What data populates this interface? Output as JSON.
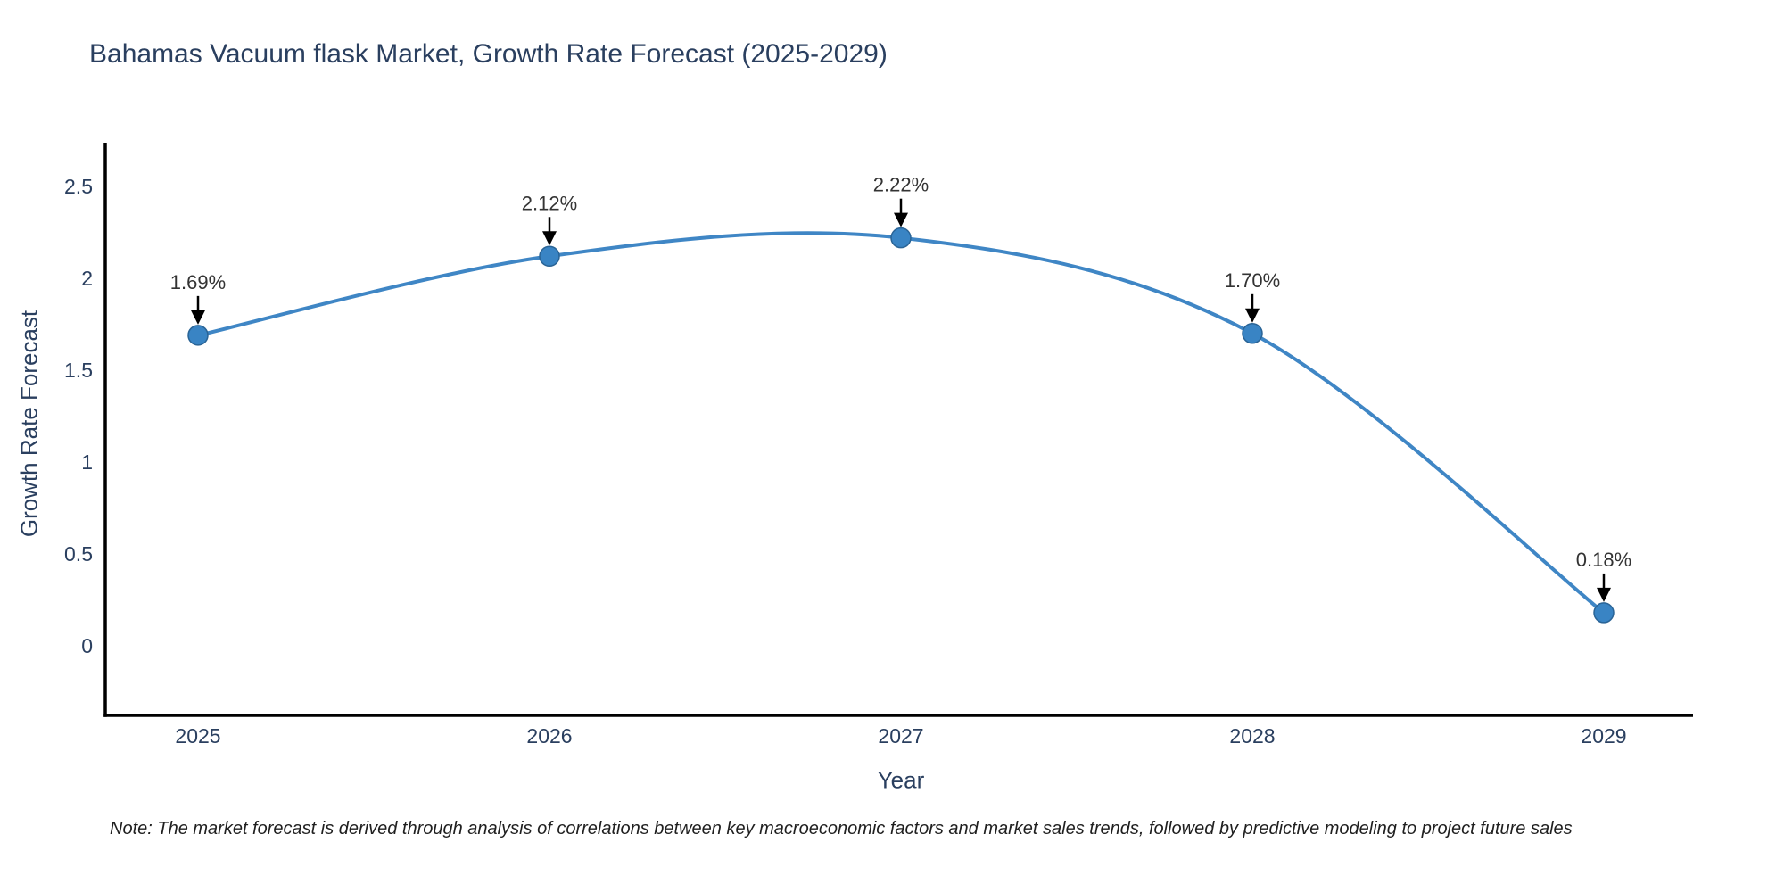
{
  "chart": {
    "title": "Bahamas Vacuum flask Market, Growth Rate Forecast (2025-2029)",
    "x_axis_title": "Year",
    "y_axis_title": "Growth Rate Forecast",
    "note": "Note: The market forecast is derived through analysis of correlations between key macroeconomic factors and market sales trends, followed by predictive modeling to project future sales",
    "colors": {
      "line": "#3f86c5",
      "marker": "#3984c4",
      "marker_edge": "#2a6496",
      "axis": "#000000",
      "text": "#2a3f5f",
      "annotation": "#333333",
      "arrow": "#000000",
      "background": "#ffffff"
    }
  },
  "chart_data": {
    "type": "line",
    "line_shape": "spline",
    "x": [
      2025,
      2026,
      2027,
      2028,
      2029
    ],
    "values": [
      1.69,
      2.12,
      2.22,
      1.7,
      0.18
    ],
    "point_labels": [
      "1.69%",
      "2.12%",
      "2.22%",
      "1.70%",
      "0.18%"
    ],
    "title": "Bahamas Vacuum flask Market, Growth Rate Forecast (2025-2029)",
    "xlabel": "Year",
    "ylabel": "Growth Rate Forecast",
    "x_tick_labels": [
      "2025",
      "2026",
      "2027",
      "2028",
      "2029"
    ],
    "y_ticks": [
      0,
      0.5,
      1,
      1.5,
      2,
      2.5
    ],
    "y_tick_labels": [
      "0",
      "0.5",
      "1",
      "1.5",
      "2",
      "2.5"
    ],
    "ylim": [
      -0.38,
      2.74
    ],
    "grid": false,
    "legend": false,
    "markers": true,
    "annotations_with_arrows": true
  }
}
